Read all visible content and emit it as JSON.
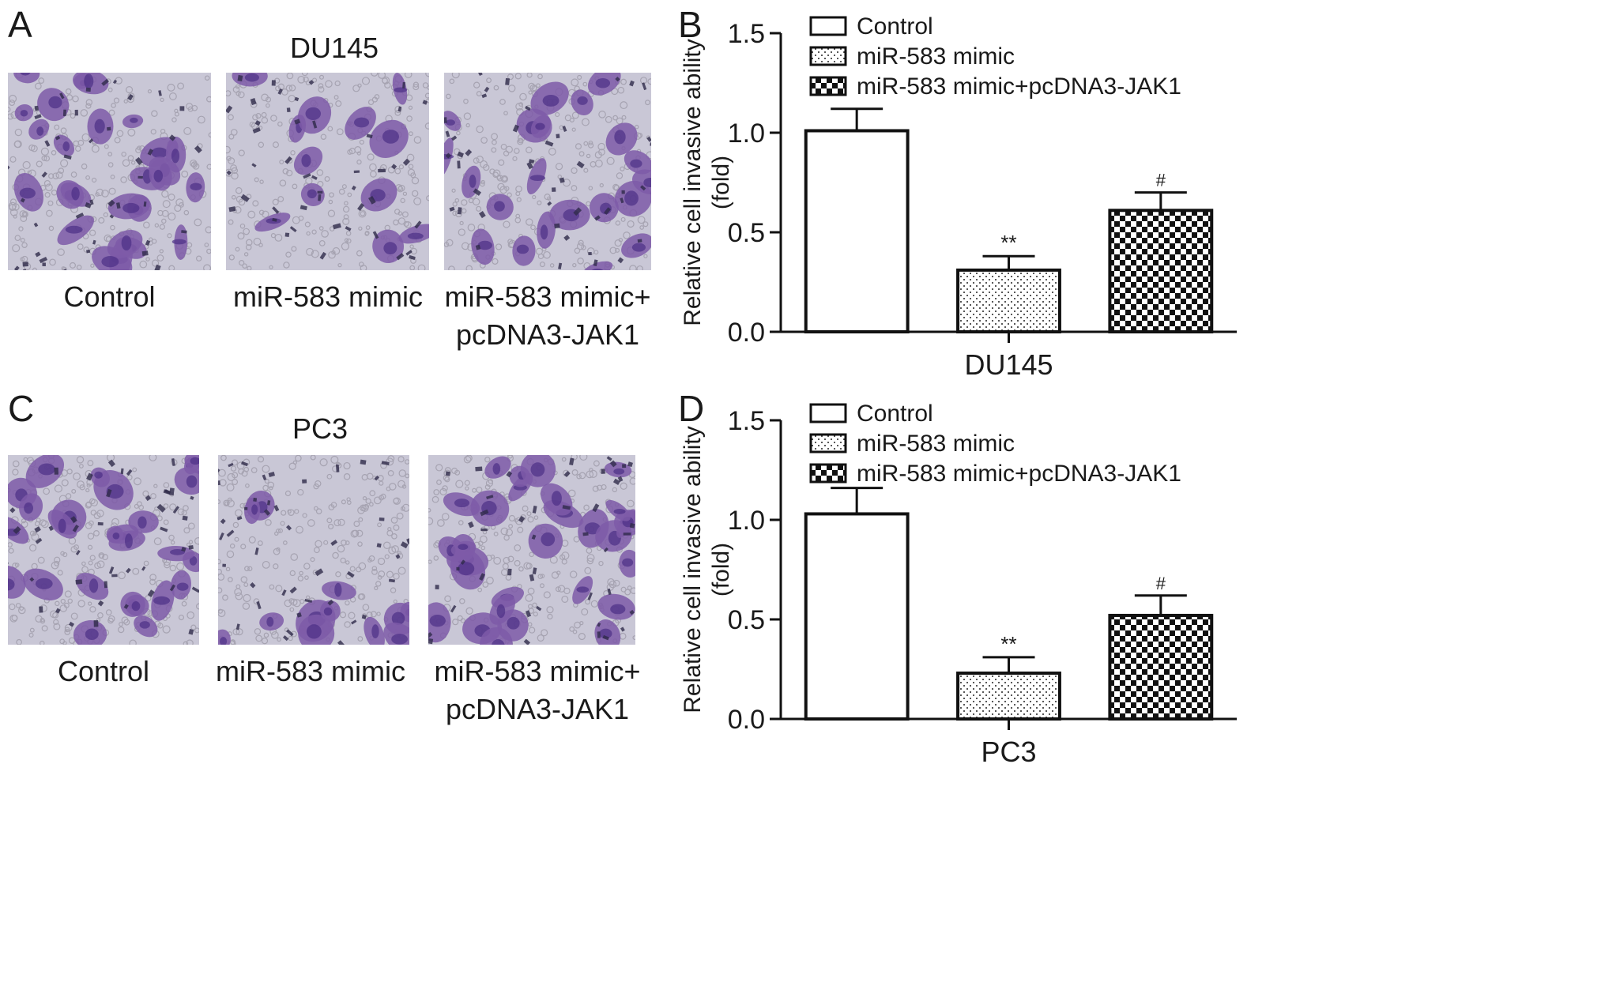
{
  "figure": {
    "panel_a": {
      "letter": "A",
      "title": "DU145",
      "captions": [
        "Control",
        "miR-583 mimic",
        "miR-583 mimic+",
        "pcDNA3-JAK1"
      ]
    },
    "panel_c": {
      "letter": "C",
      "title": "PC3",
      "captions": [
        "Control",
        "miR-583 mimic",
        "miR-583 mimic+",
        "pcDNA3-JAK1"
      ]
    },
    "panel_b_letter": "B",
    "panel_d_letter": "D",
    "stain_colors": {
      "background": "#c9c7d6",
      "cell_body": "#7e5aa8",
      "cell_dark": "#4b2f86",
      "pore": "#a6a3b1"
    }
  },
  "chart_data": [
    {
      "type": "bar",
      "panel": "B",
      "categories": [
        "Control",
        "miR-583 mimic",
        "miR-583 mimic+pcDNA3-JAK1"
      ],
      "values": [
        1.01,
        0.31,
        0.61
      ],
      "errors": [
        0.11,
        0.07,
        0.09
      ],
      "significance": [
        "",
        "**",
        "#"
      ],
      "patterns": [
        "white",
        "dots",
        "checker"
      ],
      "xlabel": "DU145",
      "ylabel_lines": [
        "Relative cell invasive ability",
        "(fold)"
      ],
      "ylim": [
        0,
        1.5
      ],
      "yticks": [
        0.0,
        0.5,
        1.0,
        1.5
      ],
      "ytick_labels": [
        "0.0",
        "0.5",
        "1.0",
        "1.5"
      ],
      "legend": [
        "Control",
        "miR-583 mimic",
        "miR-583 mimic+pcDNA3-JAK1"
      ],
      "legend_position": "top",
      "grid": false
    },
    {
      "type": "bar",
      "panel": "D",
      "categories": [
        "Control",
        "miR-583 mimic",
        "miR-583 mimic+pcDNA3-JAK1"
      ],
      "values": [
        1.03,
        0.23,
        0.52
      ],
      "errors": [
        0.13,
        0.08,
        0.1
      ],
      "significance": [
        "",
        "**",
        "#"
      ],
      "patterns": [
        "white",
        "dots",
        "checker"
      ],
      "xlabel": "PC3",
      "ylabel_lines": [
        "Relative cell invasive ability",
        "(fold)"
      ],
      "ylim": [
        0,
        1.5
      ],
      "yticks": [
        0.0,
        0.5,
        1.0,
        1.5
      ],
      "ytick_labels": [
        "0.0",
        "0.5",
        "1.0",
        "1.5"
      ],
      "legend": [
        "Control",
        "miR-583 mimic",
        "miR-583 mimic+pcDNA3-JAK1"
      ],
      "legend_position": "top",
      "grid": false
    }
  ]
}
